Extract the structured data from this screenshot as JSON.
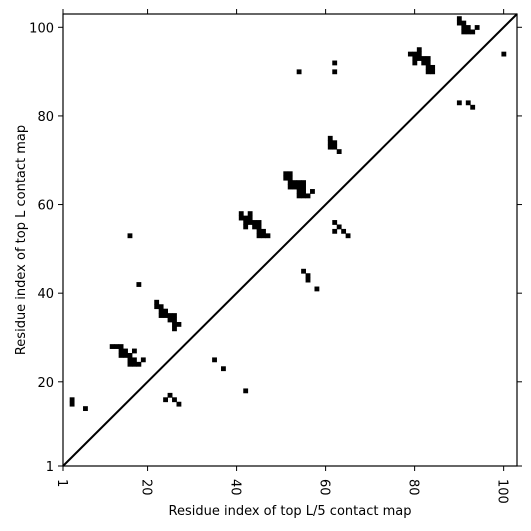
{
  "chart_data": {
    "type": "heatmap",
    "title": "",
    "xlabel": "Residue index of top L/5 contact map",
    "ylabel": "Residue index of top L contact map",
    "xlim": [
      1,
      103
    ],
    "ylim": [
      1,
      103
    ],
    "x_ticks": [
      1,
      20,
      40,
      60,
      80,
      100
    ],
    "y_ticks": [
      1,
      20,
      40,
      60,
      80,
      100
    ],
    "x_tick_labels": [
      "1",
      "20",
      "40",
      "60",
      "80",
      "100"
    ],
    "y_tick_labels": [
      "1",
      "20",
      "40",
      "60",
      "80",
      "100"
    ],
    "x_tick_rotation": "vertical",
    "diagonal": {
      "from": [
        1,
        1
      ],
      "to": [
        103,
        103
      ]
    },
    "grid": false,
    "legend": "none",
    "cell_color": "#000000",
    "contacts": [
      [
        3,
        15
      ],
      [
        3,
        16
      ],
      [
        6,
        14
      ],
      [
        12,
        28
      ],
      [
        13,
        28
      ],
      [
        14,
        28
      ],
      [
        14,
        27
      ],
      [
        14,
        26
      ],
      [
        15,
        27
      ],
      [
        15,
        26
      ],
      [
        16,
        26
      ],
      [
        16,
        25
      ],
      [
        16,
        24
      ],
      [
        17,
        24
      ],
      [
        17,
        25
      ],
      [
        17,
        27
      ],
      [
        18,
        24
      ],
      [
        19,
        25
      ],
      [
        16,
        53
      ],
      [
        18,
        42
      ],
      [
        22,
        37
      ],
      [
        22,
        38
      ],
      [
        23,
        37
      ],
      [
        23,
        36
      ],
      [
        23,
        35
      ],
      [
        24,
        36
      ],
      [
        24,
        35
      ],
      [
        25,
        35
      ],
      [
        25,
        34
      ],
      [
        26,
        35
      ],
      [
        26,
        34
      ],
      [
        26,
        33
      ],
      [
        26,
        32
      ],
      [
        27,
        33
      ],
      [
        24,
        16
      ],
      [
        25,
        17
      ],
      [
        26,
        16
      ],
      [
        27,
        15
      ],
      [
        35,
        25
      ],
      [
        37,
        23
      ],
      [
        42,
        18
      ],
      [
        41,
        58
      ],
      [
        41,
        57
      ],
      [
        42,
        57
      ],
      [
        42,
        56
      ],
      [
        42,
        55
      ],
      [
        43,
        58
      ],
      [
        43,
        57
      ],
      [
        43,
        56
      ],
      [
        44,
        56
      ],
      [
        44,
        55
      ],
      [
        45,
        56
      ],
      [
        45,
        55
      ],
      [
        45,
        54
      ],
      [
        45,
        53
      ],
      [
        46,
        54
      ],
      [
        46,
        53
      ],
      [
        47,
        53
      ],
      [
        51,
        67
      ],
      [
        51,
        66
      ],
      [
        52,
        67
      ],
      [
        52,
        66
      ],
      [
        52,
        65
      ],
      [
        52,
        64
      ],
      [
        53,
        65
      ],
      [
        53,
        64
      ],
      [
        54,
        65
      ],
      [
        54,
        64
      ],
      [
        54,
        63
      ],
      [
        54,
        62
      ],
      [
        55,
        65
      ],
      [
        55,
        64
      ],
      [
        55,
        63
      ],
      [
        55,
        62
      ],
      [
        56,
        62
      ],
      [
        57,
        63
      ],
      [
        54,
        90
      ],
      [
        55,
        45
      ],
      [
        56,
        44
      ],
      [
        56,
        43
      ],
      [
        58,
        41
      ],
      [
        61,
        75
      ],
      [
        61,
        74
      ],
      [
        61,
        73
      ],
      [
        62,
        74
      ],
      [
        62,
        73
      ],
      [
        63,
        72
      ],
      [
        62,
        92
      ],
      [
        62,
        90
      ],
      [
        62,
        56
      ],
      [
        62,
        54
      ],
      [
        63,
        55
      ],
      [
        64,
        54
      ],
      [
        65,
        53
      ],
      [
        79,
        94
      ],
      [
        80,
        94
      ],
      [
        80,
        93
      ],
      [
        80,
        92
      ],
      [
        81,
        95
      ],
      [
        81,
        94
      ],
      [
        81,
        93
      ],
      [
        82,
        93
      ],
      [
        82,
        92
      ],
      [
        83,
        93
      ],
      [
        83,
        92
      ],
      [
        83,
        91
      ],
      [
        83,
        90
      ],
      [
        84,
        91
      ],
      [
        84,
        90
      ],
      [
        90,
        102
      ],
      [
        90,
        101
      ],
      [
        91,
        101
      ],
      [
        91,
        100
      ],
      [
        91,
        99
      ],
      [
        92,
        100
      ],
      [
        92,
        99
      ],
      [
        93,
        99
      ],
      [
        94,
        100
      ],
      [
        90,
        83
      ],
      [
        92,
        83
      ],
      [
        93,
        82
      ],
      [
        100,
        94
      ]
    ]
  }
}
